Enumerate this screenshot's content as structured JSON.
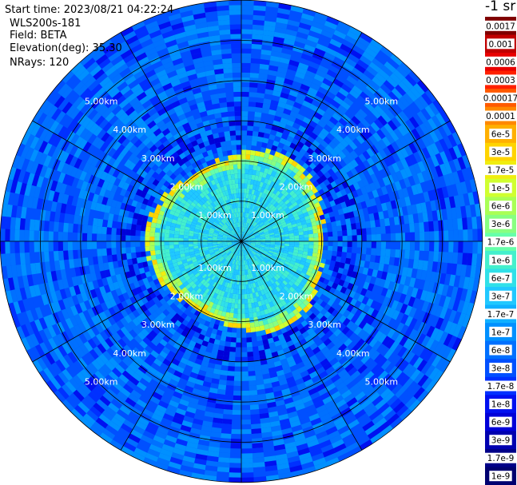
{
  "header": {
    "start_time": "Start time: 2023/08/21 04:22:24",
    "instrument": "WLS200s-181",
    "field": "Field: BETA",
    "elevation": "Elevation(deg): 35.30",
    "nrays": "NRays: 120"
  },
  "colorbar": {
    "unit": "-1 sr",
    "labels": [
      "0.0017",
      "0.001",
      "0.0006",
      "0.0003",
      "0.00017",
      "0.0001",
      "6e-5",
      "3e-5",
      "1.7e-5",
      "1e-5",
      "6e-6",
      "3e-6",
      "1.7e-6",
      "1e-6",
      "6e-7",
      "3e-7",
      "1.7e-7",
      "1e-7",
      "6e-8",
      "3e-8",
      "1.7e-8",
      "1e-8",
      "6e-9",
      "3e-9",
      "1.7e-9",
      "1e-9"
    ],
    "colors": [
      "#800000",
      "#c00000",
      "#e80000",
      "#ff2000",
      "#ff5a00",
      "#ff8800",
      "#ffb000",
      "#ffd400",
      "#f0ee10",
      "#d0ff30",
      "#aaff55",
      "#88ff80",
      "#66ffaa",
      "#44f0cc",
      "#30e0e8",
      "#20c8ff",
      "#10b0ff",
      "#0090ff",
      "#0070ff",
      "#0050ff",
      "#0030ff",
      "#0010f0",
      "#0000d8",
      "#0000b0",
      "#000088",
      "#000070"
    ]
  },
  "chart_data": {
    "type": "ppi",
    "field": "BETA",
    "range_rings_km": [
      1.0,
      2.0,
      3.0,
      4.0,
      5.0
    ],
    "ring_labels": [
      "1.00km",
      "2.00km",
      "3.00km",
      "4.00km",
      "5.00km"
    ],
    "max_range_km": 6.0,
    "n_rays": 120,
    "background_value": "3e-8",
    "boundary_layer_ring_km": 2.1,
    "boundary_layer_value": "1e-5",
    "inner_region_value": "6e-7",
    "spoke_angles_deg": [
      0,
      30,
      60,
      90,
      120,
      150,
      180,
      210,
      240,
      270,
      300,
      330
    ]
  }
}
